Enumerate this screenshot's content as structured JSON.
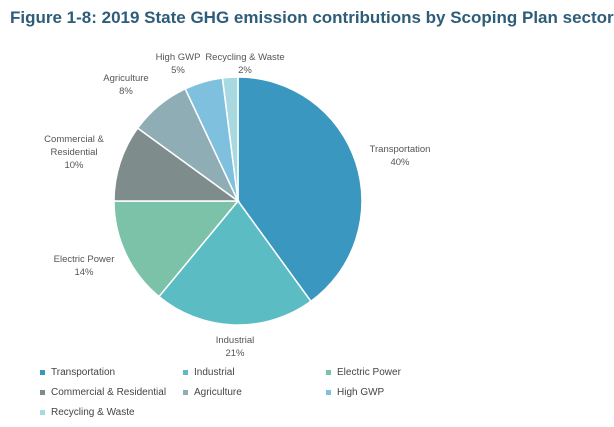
{
  "chart_data": {
    "type": "pie",
    "title": "Figure 1-8: 2019 State GHG emission contributions by Scoping Plan sector",
    "categories": [
      "Transportation",
      "Industrial",
      "Electric Power",
      "Commercial & Residential",
      "Agriculture",
      "High GWP",
      "Recycling & Waste"
    ],
    "values": [
      40,
      21,
      14,
      10,
      8,
      5,
      2
    ],
    "value_labels": [
      "40%",
      "21%",
      "14%",
      "10%",
      "8%",
      "5%",
      "2%"
    ],
    "colors": [
      "#3a97bf",
      "#5bbcc3",
      "#7cc2a8",
      "#7f8c8c",
      "#8fadb5",
      "#7fc0de",
      "#a8d8e0"
    ],
    "legend": "bottom"
  }
}
